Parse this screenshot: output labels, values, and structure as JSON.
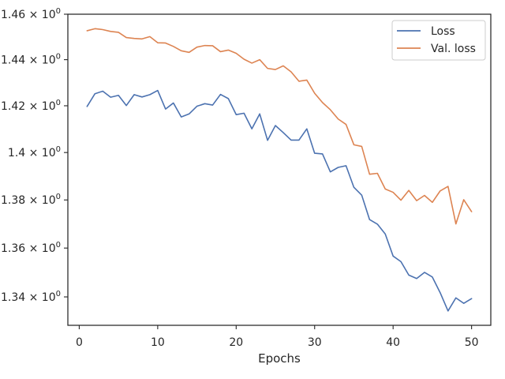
{
  "chart_data": {
    "type": "line",
    "title": "",
    "xlabel": "Epochs",
    "ylabel": "",
    "xlim": [
      -1.45,
      52.45
    ],
    "ylim": [
      1.3285,
      1.46
    ],
    "y_scale": "log",
    "grid": false,
    "legend_position": "top-right",
    "xticks": [
      0,
      10,
      20,
      30,
      40,
      50
    ],
    "xtick_labels": [
      "0",
      "10",
      "20",
      "30",
      "40",
      "50"
    ],
    "yticks": [
      {
        "value": 1.34,
        "base": "1.34 × 10",
        "exp": "0"
      },
      {
        "value": 1.36,
        "base": "1.36 × 10",
        "exp": "0"
      },
      {
        "value": 1.38,
        "base": "1.38 × 10",
        "exp": "0"
      },
      {
        "value": 1.4,
        "base": "1.4 × 10",
        "exp": "0"
      },
      {
        "value": 1.42,
        "base": "1.42 × 10",
        "exp": "0"
      },
      {
        "value": 1.44,
        "base": "1.44 × 10",
        "exp": "0"
      },
      {
        "value": 1.46,
        "base": "1.46 × 10",
        "exp": "0"
      }
    ],
    "x": [
      1,
      2,
      3,
      4,
      5,
      6,
      7,
      8,
      9,
      10,
      11,
      12,
      13,
      14,
      15,
      16,
      17,
      18,
      19,
      20,
      21,
      22,
      23,
      24,
      25,
      26,
      27,
      28,
      29,
      30,
      31,
      32,
      33,
      34,
      35,
      36,
      37,
      38,
      39,
      40,
      41,
      42,
      43,
      44,
      45,
      46,
      47,
      48,
      49,
      50
    ],
    "series": [
      {
        "name": "Loss",
        "color": "#4c72b0",
        "values": [
          1.4197,
          1.4252,
          1.4263,
          1.4237,
          1.4245,
          1.4201,
          1.4248,
          1.4238,
          1.4248,
          1.4266,
          1.4186,
          1.4212,
          1.4152,
          1.4165,
          1.4198,
          1.4209,
          1.4203,
          1.4249,
          1.4231,
          1.4162,
          1.4168,
          1.4101,
          1.4165,
          1.4052,
          1.4115,
          1.4085,
          1.4053,
          1.4053,
          1.4101,
          1.3997,
          1.3994,
          1.3918,
          1.3937,
          1.3944,
          1.3853,
          1.382,
          1.3718,
          1.3699,
          1.3658,
          1.3567,
          1.3544,
          1.3489,
          1.3475,
          1.35,
          1.3481,
          1.3417,
          1.3343,
          1.3396,
          1.3374,
          1.3393
        ]
      },
      {
        "name": "Val. loss",
        "color": "#dd8452",
        "values": [
          1.4527,
          1.4536,
          1.4532,
          1.4524,
          1.452,
          1.4497,
          1.4493,
          1.4491,
          1.4501,
          1.4474,
          1.4473,
          1.4458,
          1.4439,
          1.4432,
          1.4455,
          1.4462,
          1.4461,
          1.4435,
          1.4442,
          1.4428,
          1.4402,
          1.4385,
          1.44,
          1.4362,
          1.4357,
          1.4373,
          1.4347,
          1.4306,
          1.4311,
          1.4254,
          1.4214,
          1.4183,
          1.4143,
          1.412,
          1.4033,
          1.4026,
          1.3908,
          1.3912,
          1.3846,
          1.3832,
          1.3799,
          1.384,
          1.3797,
          1.3819,
          1.379,
          1.3838,
          1.3857,
          1.37,
          1.3801,
          1.3751
        ]
      }
    ]
  }
}
